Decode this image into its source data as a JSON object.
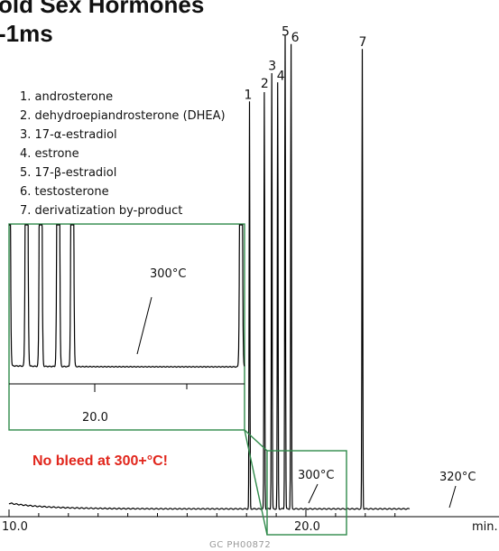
{
  "chart_data": {
    "type": "line",
    "title": "old Sex Hormones",
    "subtitle": "-1ms",
    "x_unit": "min.",
    "x_ticks": [
      "10.0",
      "20.0"
    ],
    "xlim": [
      10.0,
      23.5
    ],
    "grid": false,
    "legend_placement": "top-left",
    "legend": [
      "1. androsterone",
      "2. dehydroepiandrosterone (DHEA)",
      "3. 17-α-estradiol",
      "4. estrone",
      "5. 17-β-estradiol",
      "6. testosterone",
      "7. derivatization by-product"
    ],
    "peaks": [
      {
        "label": "1",
        "x": 18.1,
        "height": 0.85
      },
      {
        "label": "2",
        "x": 18.6,
        "height": 0.87
      },
      {
        "label": "3",
        "x": 18.85,
        "height": 0.91
      },
      {
        "label": "4",
        "x": 19.05,
        "height": 0.89
      },
      {
        "label": "5",
        "x": 19.3,
        "height": 0.99
      },
      {
        "label": "6",
        "x": 19.5,
        "height": 0.97
      },
      {
        "label": "7",
        "x": 21.9,
        "height": 0.96
      }
    ],
    "annotations": [
      {
        "text": "300°C",
        "x": 20.3
      },
      {
        "text": "320°C",
        "x": 24.5
      }
    ],
    "inset": {
      "x_tick": "20.0",
      "annotation": "300°C"
    },
    "callout": "No bleed at 300+°C!",
    "colors": {
      "trace": "#000000",
      "callout_box": "#2f8a4a",
      "callout_text": "#e1261c"
    }
  },
  "footer": "GC PH00872"
}
